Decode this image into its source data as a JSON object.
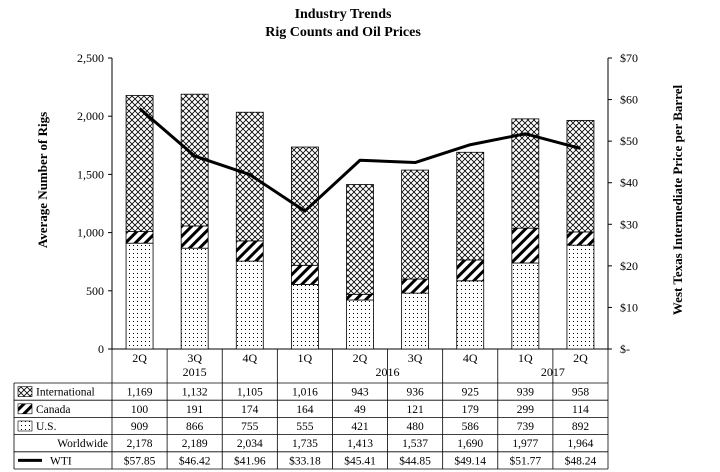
{
  "chart_data": {
    "type": "bar",
    "stacked": true,
    "title": "Industry Trends",
    "subtitle": "Rig Counts and Oil Prices",
    "ylabel": "Average Number of Rigs",
    "y2label": "West Texas Intermediate Price per Barrel",
    "ylim": [
      0,
      2500
    ],
    "y2lim": [
      0,
      70
    ],
    "yticks": [
      "0",
      "500",
      "1,000",
      "1,500",
      "2,000",
      "2,500"
    ],
    "y2ticks": [
      "$-",
      "$10",
      "$20",
      "$30",
      "$40",
      "$50",
      "$60",
      "$70"
    ],
    "categories": [
      "2Q",
      "3Q",
      "4Q",
      "1Q",
      "2Q",
      "3Q",
      "4Q",
      "1Q",
      "2Q"
    ],
    "year_groups": [
      {
        "label": "2015",
        "span": 3
      },
      {
        "label": "2016",
        "span": 4
      },
      {
        "label": "2017",
        "span": 2
      }
    ],
    "series": [
      {
        "name": "International",
        "pattern": "crosshatch",
        "values": [
          1169,
          1132,
          1105,
          1016,
          943,
          936,
          925,
          939,
          958
        ],
        "labels": [
          "1,169",
          "1,132",
          "1,105",
          "1,016",
          "943",
          "936",
          "925",
          "939",
          "958"
        ]
      },
      {
        "name": "Canada",
        "pattern": "diagonal",
        "values": [
          100,
          191,
          174,
          164,
          49,
          121,
          179,
          299,
          114
        ],
        "labels": [
          "100",
          "191",
          "174",
          "164",
          "49",
          "121",
          "179",
          "299",
          "114"
        ]
      },
      {
        "name": "U.S.",
        "pattern": "dots",
        "values": [
          909,
          866,
          755,
          555,
          421,
          480,
          586,
          739,
          892
        ],
        "labels": [
          "909",
          "866",
          "755",
          "555",
          "421",
          "480",
          "586",
          "739",
          "892"
        ]
      }
    ],
    "worldwide": {
      "name": "Worldwide",
      "values": [
        2178,
        2189,
        2034,
        1735,
        1413,
        1537,
        1690,
        1977,
        1964
      ],
      "labels": [
        "2,178",
        "2,189",
        "2,034",
        "1,735",
        "1,413",
        "1,537",
        "1,690",
        "1,977",
        "1,964"
      ]
    },
    "line": {
      "name": "WTI",
      "axis": "right",
      "values": [
        57.85,
        46.42,
        41.96,
        33.18,
        45.41,
        44.85,
        49.14,
        51.77,
        48.24
      ],
      "labels": [
        "$57.85",
        "$46.42",
        "$41.96",
        "$33.18",
        "$45.41",
        "$44.85",
        "$49.14",
        "$51.77",
        "$48.24"
      ]
    },
    "colors": {
      "line": "#000000",
      "bar_outline": "#000000",
      "background": "#ffffff"
    }
  }
}
